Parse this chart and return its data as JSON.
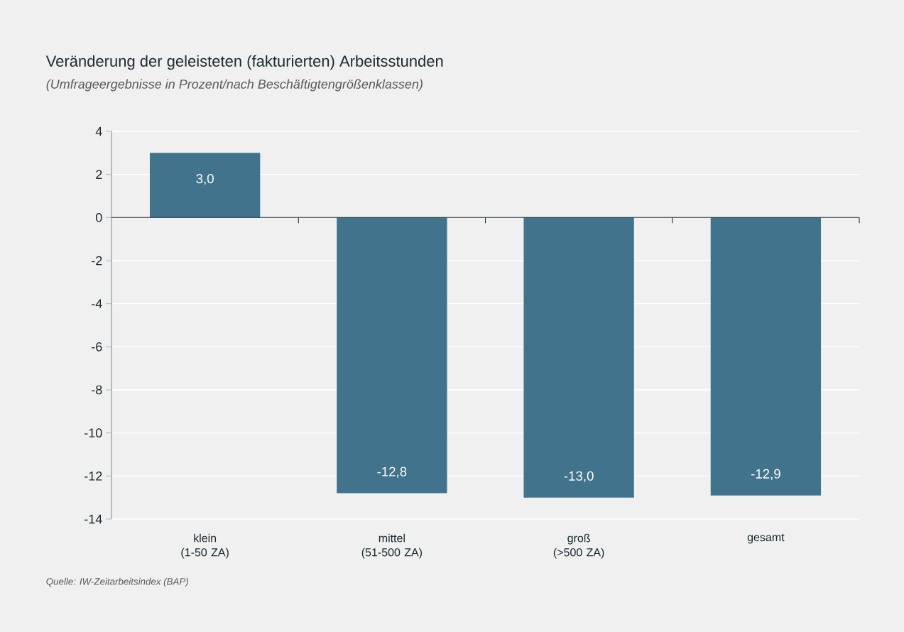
{
  "chart_data": {
    "type": "bar",
    "title": "Veränderung der geleisteten (fakturierten) Arbeitsstunden",
    "subtitle": "(Umfrageergebnisse in Prozent/nach Beschäftigtengrößenklassen)",
    "categories": [
      "klein (1-50 ZA)",
      "mittel (51-500 ZA)",
      "groß (>500 ZA)",
      "gesamt"
    ],
    "values": [
      3.0,
      -12.8,
      -13.0,
      -12.9
    ],
    "value_labels": [
      "3,0",
      "-12,8",
      "-13,0",
      "-12,9"
    ],
    "color": "#41738c",
    "ylim": [
      -14,
      4
    ],
    "yticks": [
      -14,
      -12,
      -10,
      -8,
      -6,
      -4,
      -2,
      0,
      2,
      4
    ],
    "grid": "y",
    "annotations": [
      "Quelle: IW-Zeitarbeitsindex (BAP)"
    ]
  }
}
